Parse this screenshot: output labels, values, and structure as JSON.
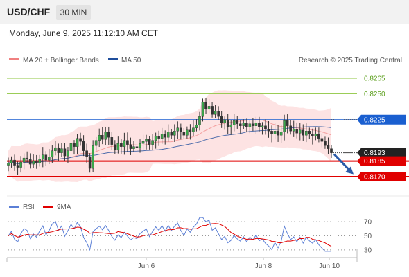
{
  "header": {
    "symbol": "USD/CHF",
    "timeframe": "30 MIN"
  },
  "timestamp": "Monday, June 9, 2025 11:12:10 AM CET",
  "colors": {
    "bollinger": "#f08080",
    "ma50": "#1f4e9c",
    "resistance_green": "#8dc63f",
    "resistance_blue": "#1a5fd0",
    "support_red": "#e00000",
    "current": "#222222",
    "rsi": "#5b7fd6",
    "rsi_ma": "#e00000",
    "arrow": "#2a5aa8"
  },
  "chart_data": [
    {
      "type": "candlestick",
      "title": "USD/CHF",
      "legend": [
        {
          "label": "MA 20 + Bollinger Bands",
          "color": "#f08080"
        },
        {
          "label": "MA 50",
          "color": "#1f4e9c"
        }
      ],
      "credit": "Research © 2025 Trading Central",
      "x_ticks": [
        "Jun 6",
        "Jun 8",
        "Jun 10"
      ],
      "ylim": [
        0.816,
        0.8275
      ],
      "levels": [
        {
          "value": 0.8265,
          "label": "0.8265",
          "style": "green"
        },
        {
          "value": 0.825,
          "label": "0.8250",
          "style": "green"
        },
        {
          "value": 0.8225,
          "label": "0.8225",
          "style": "blue"
        },
        {
          "value": 0.8193,
          "label": "0.8193",
          "style": "current"
        },
        {
          "value": 0.8185,
          "label": "0.8185",
          "style": "red"
        },
        {
          "value": 0.817,
          "label": "0.8170",
          "style": "red"
        }
      ],
      "close_series": [
        0.8183,
        0.8186,
        0.8181,
        0.8179,
        0.8184,
        0.8188,
        0.8187,
        0.8182,
        0.8185,
        0.8183,
        0.8187,
        0.8191,
        0.8186,
        0.8189,
        0.8195,
        0.8198,
        0.8193,
        0.8197,
        0.819,
        0.8195,
        0.8202,
        0.8199,
        0.8207,
        0.8204,
        0.8195,
        0.8189,
        0.8178,
        0.82,
        0.8205,
        0.821,
        0.8206,
        0.8213,
        0.8208,
        0.8201,
        0.8196,
        0.8202,
        0.8199,
        0.8205,
        0.8201,
        0.8197,
        0.8199,
        0.8198,
        0.8202,
        0.8204,
        0.8206,
        0.8201,
        0.8205,
        0.8209,
        0.8207,
        0.8211,
        0.8208,
        0.8213,
        0.821,
        0.8214,
        0.8217,
        0.8213,
        0.821,
        0.8215,
        0.8213,
        0.8217,
        0.822,
        0.8228,
        0.8242,
        0.8235,
        0.8238,
        0.823,
        0.8233,
        0.8228,
        0.8222,
        0.8225,
        0.8218,
        0.822,
        0.8224,
        0.8221,
        0.8219,
        0.8222,
        0.8218,
        0.8221,
        0.8219,
        0.8222,
        0.8218,
        0.8219,
        0.8216,
        0.8214,
        0.8211,
        0.8214,
        0.821,
        0.8213,
        0.8224,
        0.8219,
        0.8214,
        0.8216,
        0.8212,
        0.8215,
        0.821,
        0.8214,
        0.8211,
        0.8209,
        0.8211,
        0.8207,
        0.8204,
        0.82,
        0.8197,
        0.8193
      ]
    },
    {
      "type": "line",
      "title": "RSI",
      "legend": [
        {
          "label": "RSI",
          "color": "#5b7fd6"
        },
        {
          "label": "9MA",
          "color": "#e00000"
        }
      ],
      "y_ticks": [
        70,
        50,
        30
      ],
      "ylim": [
        25,
        78
      ]
    }
  ]
}
